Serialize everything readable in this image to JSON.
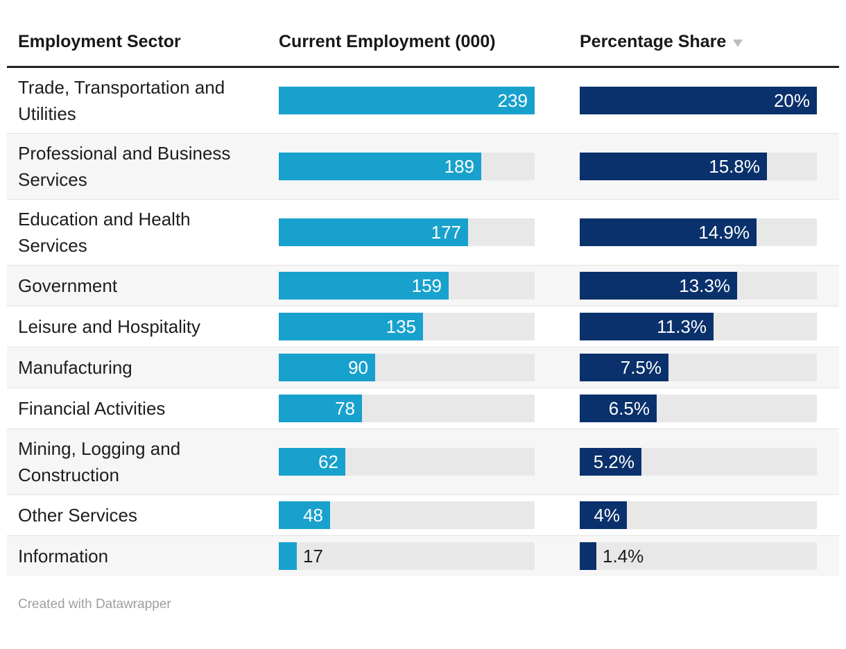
{
  "chart_data": {
    "type": "table",
    "columns": [
      "Employment Sector",
      "Current Employment (000)",
      "Percentage Share"
    ],
    "sort": {
      "column": "Percentage Share",
      "direction": "desc"
    },
    "employment_axis_max": 239,
    "share_axis_max": 20,
    "rows": [
      {
        "sector": "Trade, Transportation and Utilities",
        "employment": 239,
        "employment_label": "239",
        "share": 20,
        "share_label": "20%"
      },
      {
        "sector": "Professional and Business Services",
        "employment": 189,
        "employment_label": "189",
        "share": 15.8,
        "share_label": "15.8%"
      },
      {
        "sector": "Education and Health Services",
        "employment": 177,
        "employment_label": "177",
        "share": 14.9,
        "share_label": "14.9%"
      },
      {
        "sector": "Government",
        "employment": 159,
        "employment_label": "159",
        "share": 13.3,
        "share_label": "13.3%"
      },
      {
        "sector": "Leisure and Hospitality",
        "employment": 135,
        "employment_label": "135",
        "share": 11.3,
        "share_label": "11.3%"
      },
      {
        "sector": "Manufacturing",
        "employment": 90,
        "employment_label": "90",
        "share": 7.5,
        "share_label": "7.5%"
      },
      {
        "sector": "Financial Activities",
        "employment": 78,
        "employment_label": "78",
        "share": 6.5,
        "share_label": "6.5%"
      },
      {
        "sector": "Mining, Logging and Construction",
        "employment": 62,
        "employment_label": "62",
        "share": 5.2,
        "share_label": "5.2%"
      },
      {
        "sector": "Other Services",
        "employment": 48,
        "employment_label": "48",
        "share": 4,
        "share_label": "4%"
      },
      {
        "sector": "Information",
        "employment": 17,
        "employment_label": "17",
        "share": 1.4,
        "share_label": "1.4%"
      }
    ]
  },
  "icons": {
    "sort_desc": "down-triangle"
  },
  "colors": {
    "employment_bar": "#18a1cd",
    "share_bar": "#0a316b",
    "bar_track": "#e8e8e8",
    "row_stripe": "#f6f6f6",
    "header_rule": "#212121",
    "sort_arrow": "#bdbdbd",
    "footer_text": "#9e9e9e"
  },
  "footer": {
    "credit": "Created with Datawrapper"
  }
}
